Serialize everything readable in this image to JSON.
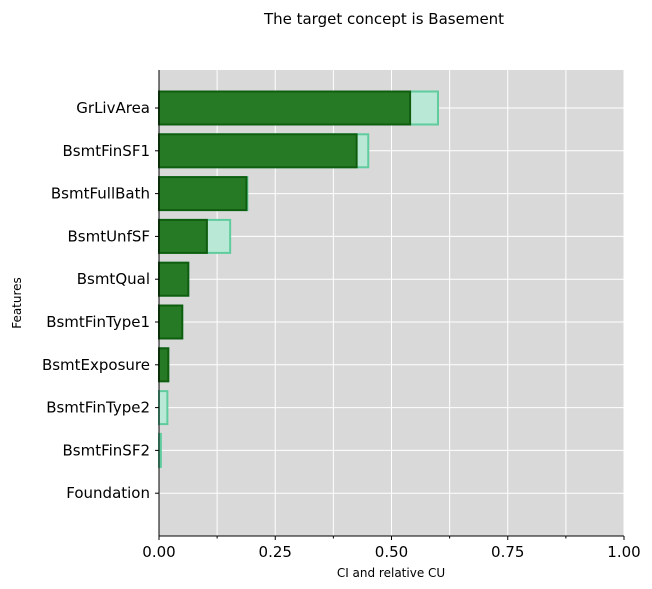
{
  "chart_data": {
    "type": "bar",
    "orientation": "horizontal",
    "title": "The target concept is Basement",
    "xlabel": "CI and relative CU",
    "ylabel": "Features",
    "xlim": [
      0,
      1
    ],
    "xticks": [
      0.0,
      0.25,
      0.5,
      0.75,
      1.0
    ],
    "xtick_labels": [
      "0.00",
      "0.25",
      "0.50",
      "0.75",
      "1.00"
    ],
    "grid": true,
    "categories": [
      "GrLivArea",
      "BsmtFinSF1",
      "BsmtFullBath",
      "BsmtUnfSF",
      "BsmtQual",
      "BsmtFinType1",
      "BsmtExposure",
      "BsmtFinType2",
      "BsmtFinSF2",
      "Foundation"
    ],
    "series": [
      {
        "values": [
          0.6,
          0.45,
          0.19,
          0.153,
          0.063,
          0.05,
          0.02,
          0.018,
          0.004,
          0.0
        ],
        "color": "#b9e8d6",
        "edge": "#5fcc9e"
      },
      {
        "values": [
          0.54,
          0.425,
          0.188,
          0.103,
          0.063,
          0.05,
          0.02,
          0.0,
          0.0,
          0.0
        ],
        "color": "#267a26",
        "edge": "#0f5e0f"
      }
    ],
    "background": "#d9d9d9"
  }
}
